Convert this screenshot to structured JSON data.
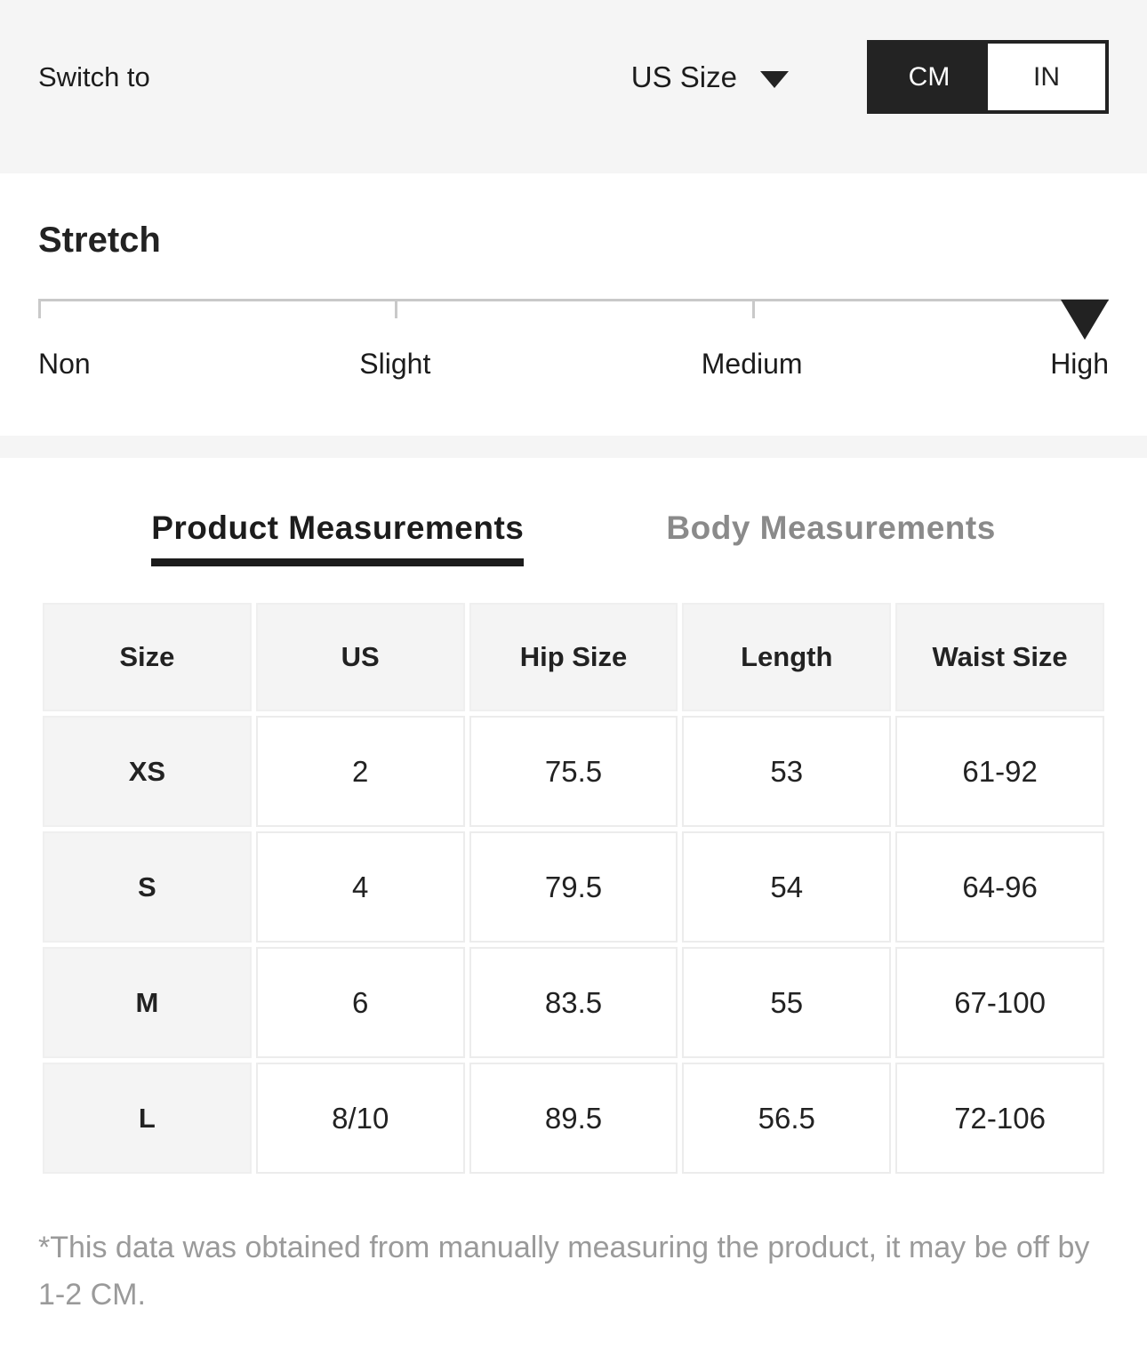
{
  "header": {
    "switch_label": "Switch to",
    "size_select": {
      "value": "US Size"
    },
    "unit_toggle": {
      "options": [
        "CM",
        "IN"
      ],
      "selected": "CM"
    }
  },
  "stretch": {
    "title": "Stretch",
    "levels": [
      "Non",
      "Slight",
      "Medium",
      "High"
    ],
    "selected": "High"
  },
  "tabs": {
    "product": "Product Measurements",
    "body": "Body Measurements",
    "active": "Product Measurements"
  },
  "table": {
    "columns": [
      "Size",
      "US",
      "Hip Size",
      "Length",
      "Waist Size"
    ],
    "rows": [
      [
        "XS",
        "2",
        "75.5",
        "53",
        "61-92"
      ],
      [
        "S",
        "4",
        "79.5",
        "54",
        "64-96"
      ],
      [
        "M",
        "6",
        "83.5",
        "55",
        "67-100"
      ],
      [
        "L",
        "8/10",
        "89.5",
        "56.5",
        "72-106"
      ]
    ]
  },
  "footnote": "*This data was obtained from manually measuring the product, it may be off by 1-2 CM.",
  "colors": {
    "accent_dark": "#232323",
    "bar_background": "#f5f5f5",
    "cell_background": "#f4f4f4",
    "inactive_tab": "#8a8a8a",
    "footnote_text": "#9a9a9a",
    "slider_line": "#c9c9c9",
    "cell_border": "#ececec"
  }
}
